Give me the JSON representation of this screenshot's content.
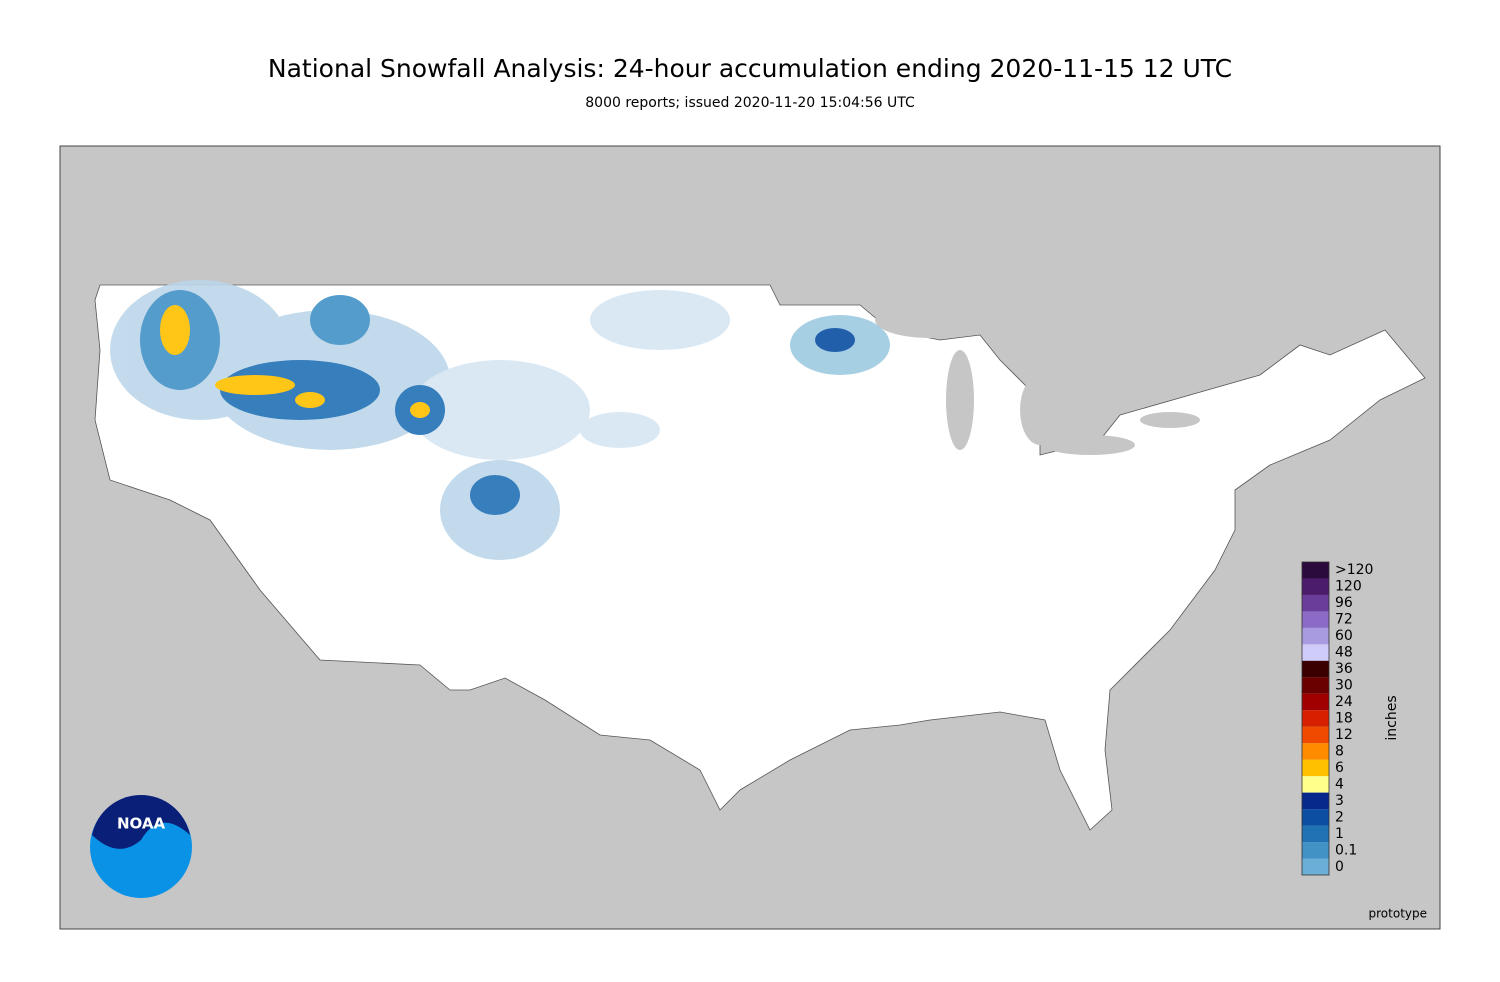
{
  "title": "National Snowfall Analysis: 24-hour accumulation ending 2020-11-15 12 UTC",
  "subtitle": "8000 reports; issued 2020-11-20 15:04:56 UTC",
  "logo": "NOAA",
  "note": "prototype",
  "legend": {
    "unit": "inches",
    "items": [
      {
        "label": ">120",
        "color": "#2b0a3d"
      },
      {
        "label": "120",
        "color": "#4b1c6b"
      },
      {
        "label": "96",
        "color": "#6a3d9a"
      },
      {
        "label": "72",
        "color": "#8b6bc6"
      },
      {
        "label": "60",
        "color": "#a99be0"
      },
      {
        "label": "48",
        "color": "#cfccfa"
      },
      {
        "label": "36",
        "color": "#3a0000"
      },
      {
        "label": "30",
        "color": "#6b0000"
      },
      {
        "label": "24",
        "color": "#a00000"
      },
      {
        "label": "18",
        "color": "#d62000"
      },
      {
        "label": "12",
        "color": "#f04a00"
      },
      {
        "label": "8",
        "color": "#ff8c00"
      },
      {
        "label": "6",
        "color": "#ffc000"
      },
      {
        "label": "4",
        "color": "#ffff8c"
      },
      {
        "label": "3",
        "color": "#08298c"
      },
      {
        "label": "2",
        "color": "#0b4ea2"
      },
      {
        "label": "1",
        "color": "#2171b5"
      },
      {
        "label": "0.1",
        "color": "#4292c6"
      },
      {
        "label": "0",
        "color": "#6baed6"
      }
    ]
  }
}
